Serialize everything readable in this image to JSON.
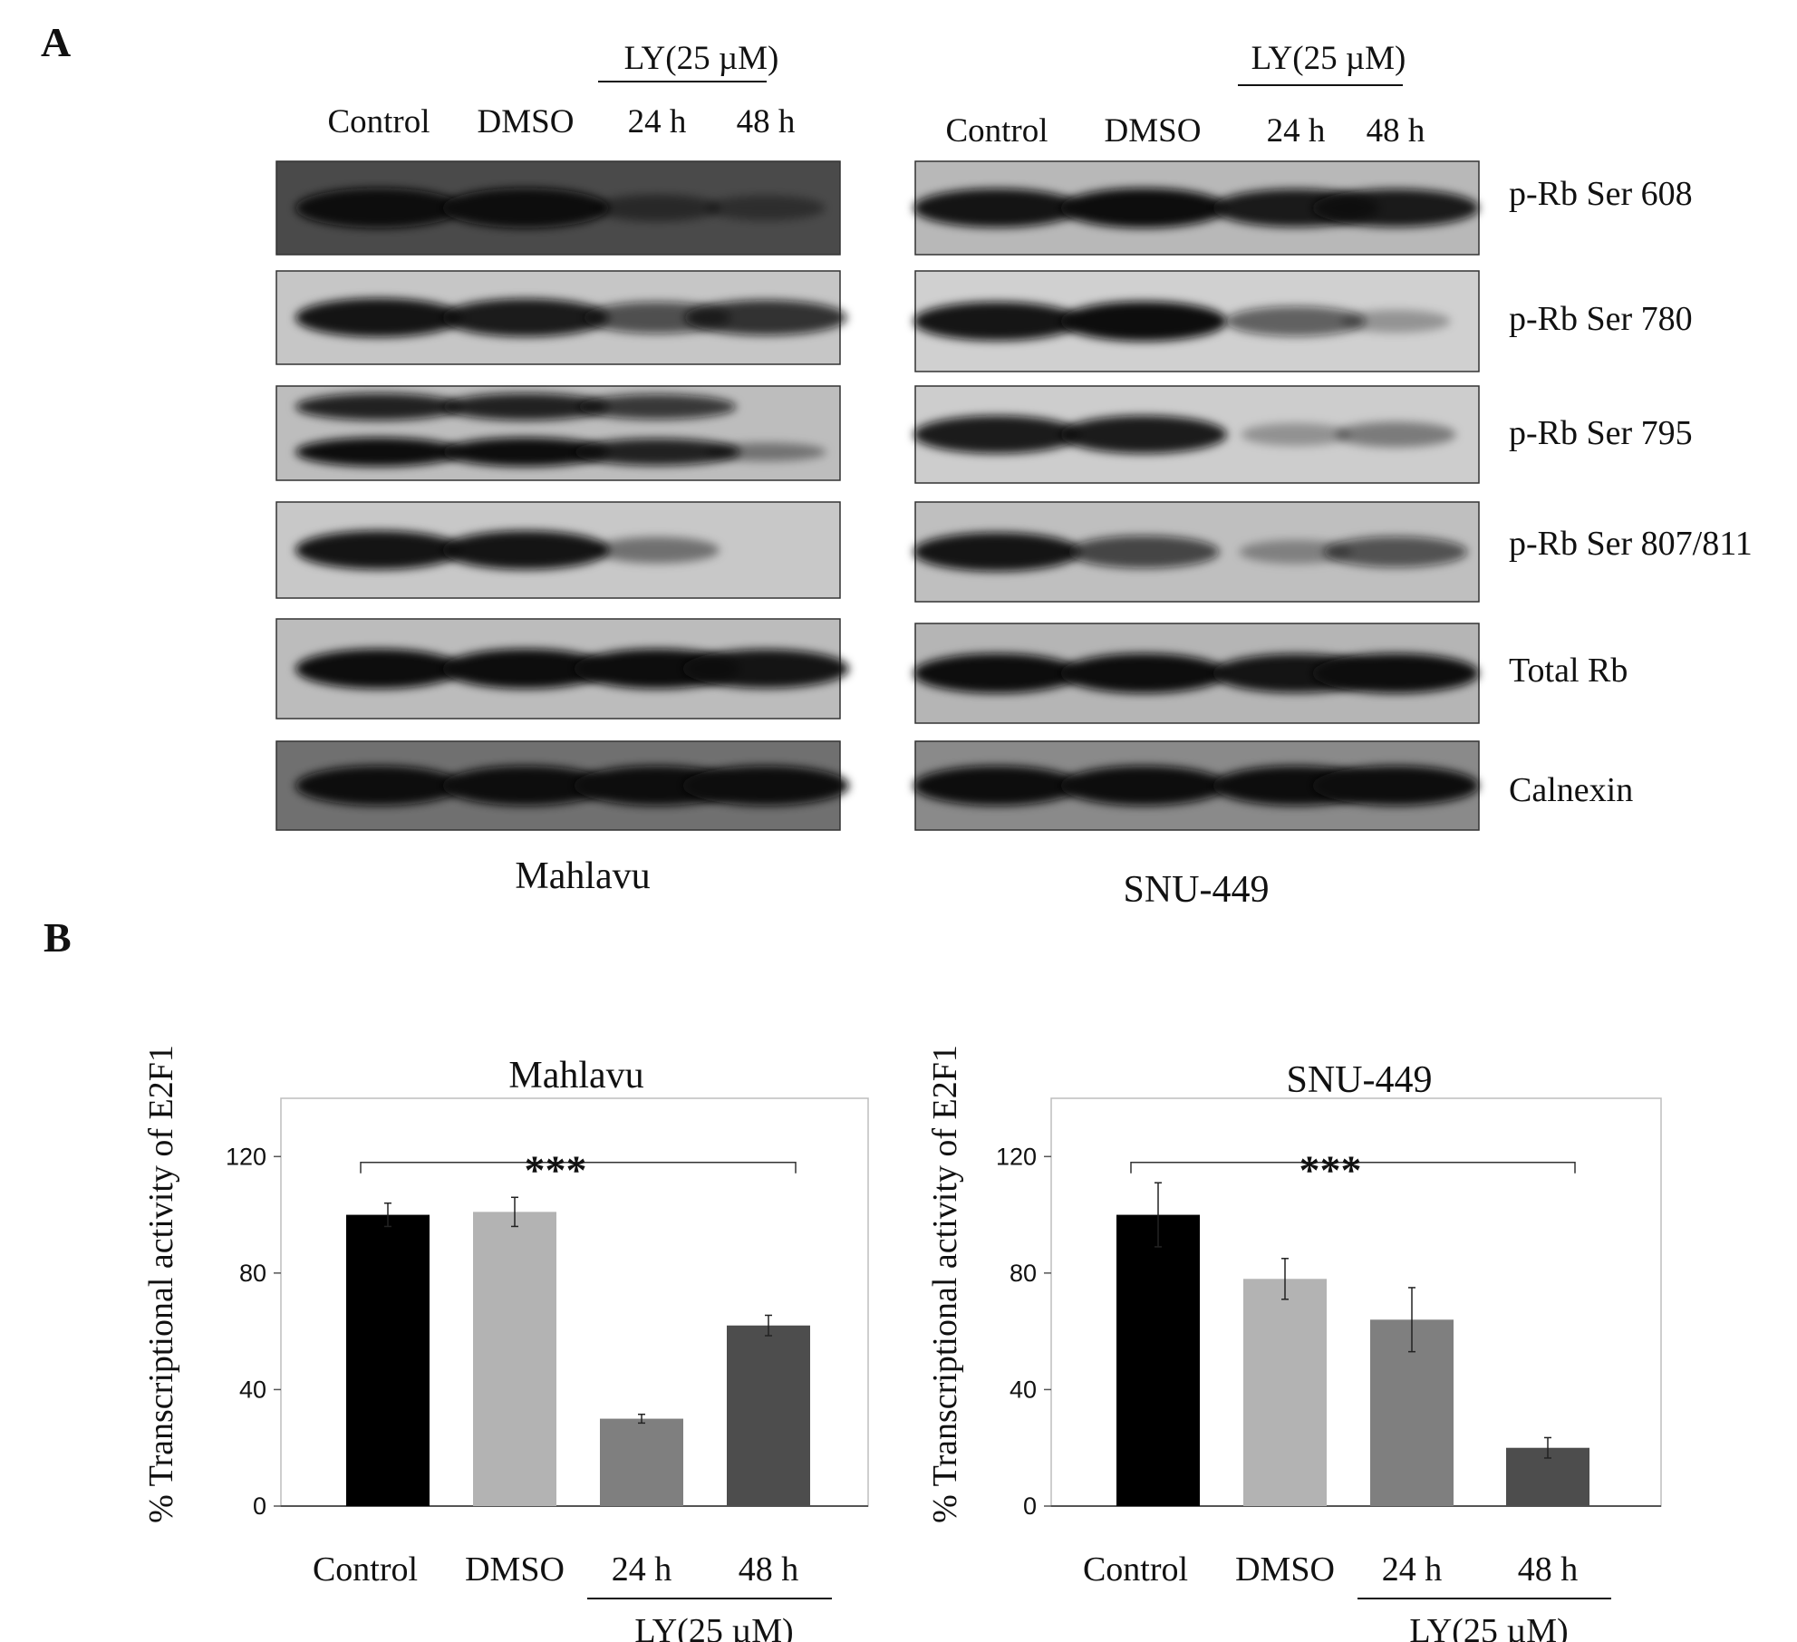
{
  "panel_a": {
    "letter": "A",
    "mahlavu": {
      "cell_line": "Mahlavu",
      "treatment": "LY(25 µM)",
      "lanes": [
        "Control",
        "DMSO",
        "24 h",
        "48 h"
      ],
      "blots": [
        {
          "label": "p-Rb Ser 608",
          "bg": "#4a4a4a",
          "bands": [
            {
              "i": [
                1.0,
                1.0,
                0.28,
                0.18
              ]
            }
          ]
        },
        {
          "label": "p-Rb Ser 780",
          "bg": "#c6c6c6",
          "bands": [
            {
              "i": [
                0.95,
                0.9,
                0.55,
                0.75
              ]
            }
          ]
        },
        {
          "label": "p-Rb Ser 795",
          "bg": "#bdbdbd",
          "bands": [
            {
              "i": [
                0.85,
                0.85,
                0.7,
                0.0
              ],
              "dy": -0.28
            },
            {
              "i": [
                1.0,
                1.0,
                0.85,
                0.2
              ],
              "dy": 0.2
            }
          ]
        },
        {
          "label": "p-Rb Ser 807/811",
          "bg": "#c8c8c8",
          "bands": [
            {
              "i": [
                0.95,
                0.95,
                0.25,
                0.0
              ]
            }
          ]
        },
        {
          "label": "Total Rb",
          "bg": "#bcbcbc",
          "bands": [
            {
              "i": [
                1.0,
                1.0,
                1.0,
                0.95
              ]
            }
          ]
        },
        {
          "label": "Calnexin",
          "bg": "#707070",
          "bands": [
            {
              "i": [
                1.0,
                1.0,
                1.0,
                1.0
              ]
            }
          ]
        }
      ]
    },
    "snu449": {
      "cell_line": "SNU-449",
      "treatment": "LY(25 µM)",
      "lanes": [
        "Control",
        "DMSO",
        "24 h",
        "48 h"
      ],
      "blots": [
        {
          "label": "p-Rb Ser 608",
          "bg": "#b8b8b8",
          "bands": [
            {
              "i": [
                0.95,
                1.0,
                0.9,
                0.9
              ]
            }
          ]
        },
        {
          "label": "p-Rb Ser 780",
          "bg": "#d0d0d0",
          "bands": [
            {
              "i": [
                0.95,
                1.0,
                0.45,
                0.05
              ]
            }
          ]
        },
        {
          "label": "p-Rb Ser 795",
          "bg": "#cdcdcd",
          "bands": [
            {
              "i": [
                0.9,
                0.9,
                0.05,
                0.2
              ]
            }
          ]
        },
        {
          "label": "p-Rb Ser 807/811",
          "bg": "#bfbfbf",
          "bands": [
            {
              "i": [
                0.95,
                0.6,
                0.1,
                0.5
              ]
            }
          ]
        },
        {
          "label": "Total Rb",
          "bg": "#b5b5b5",
          "bands": [
            {
              "i": [
                1.0,
                1.0,
                0.95,
                1.0
              ]
            }
          ]
        },
        {
          "label": "Calnexin",
          "bg": "#8a8a8a",
          "bands": [
            {
              "i": [
                1.0,
                1.0,
                1.0,
                1.0
              ]
            }
          ]
        }
      ]
    }
  },
  "panel_b": {
    "letter": "B",
    "treatment": "LY(25 µM)",
    "significance": "***"
  },
  "chart_data": [
    {
      "type": "bar",
      "title": "Mahlavu",
      "ylabel": "%  Transcriptional activity of E2F1",
      "xlabel": "",
      "categories": [
        "Control",
        "DMSO",
        "24 h",
        "48 h"
      ],
      "values": [
        100,
        101,
        30,
        62
      ],
      "errors": [
        4,
        5,
        1.5,
        3.5
      ],
      "colors": [
        "#000000",
        "#b3b3b3",
        "#7f7f7f",
        "#4d4d4d"
      ],
      "yticks": [
        0,
        40,
        80,
        120
      ],
      "ylim": [
        0,
        140
      ],
      "grid": false,
      "significance": {
        "from": 0,
        "to": 3,
        "label": "***",
        "y": 118
      }
    },
    {
      "type": "bar",
      "title": "SNU-449",
      "ylabel": "%  Transcriptional activity of E2F1",
      "xlabel": "",
      "categories": [
        "Control",
        "DMSO",
        "24 h",
        "48 h"
      ],
      "values": [
        100,
        78,
        64,
        20
      ],
      "errors": [
        11,
        7,
        11,
        3.5
      ],
      "colors": [
        "#000000",
        "#b3b3b3",
        "#7f7f7f",
        "#4d4d4d"
      ],
      "yticks": [
        0,
        40,
        80,
        120
      ],
      "ylim": [
        0,
        140
      ],
      "grid": false,
      "significance": {
        "from": 0,
        "to": 3,
        "label": "***",
        "y": 118
      }
    }
  ]
}
